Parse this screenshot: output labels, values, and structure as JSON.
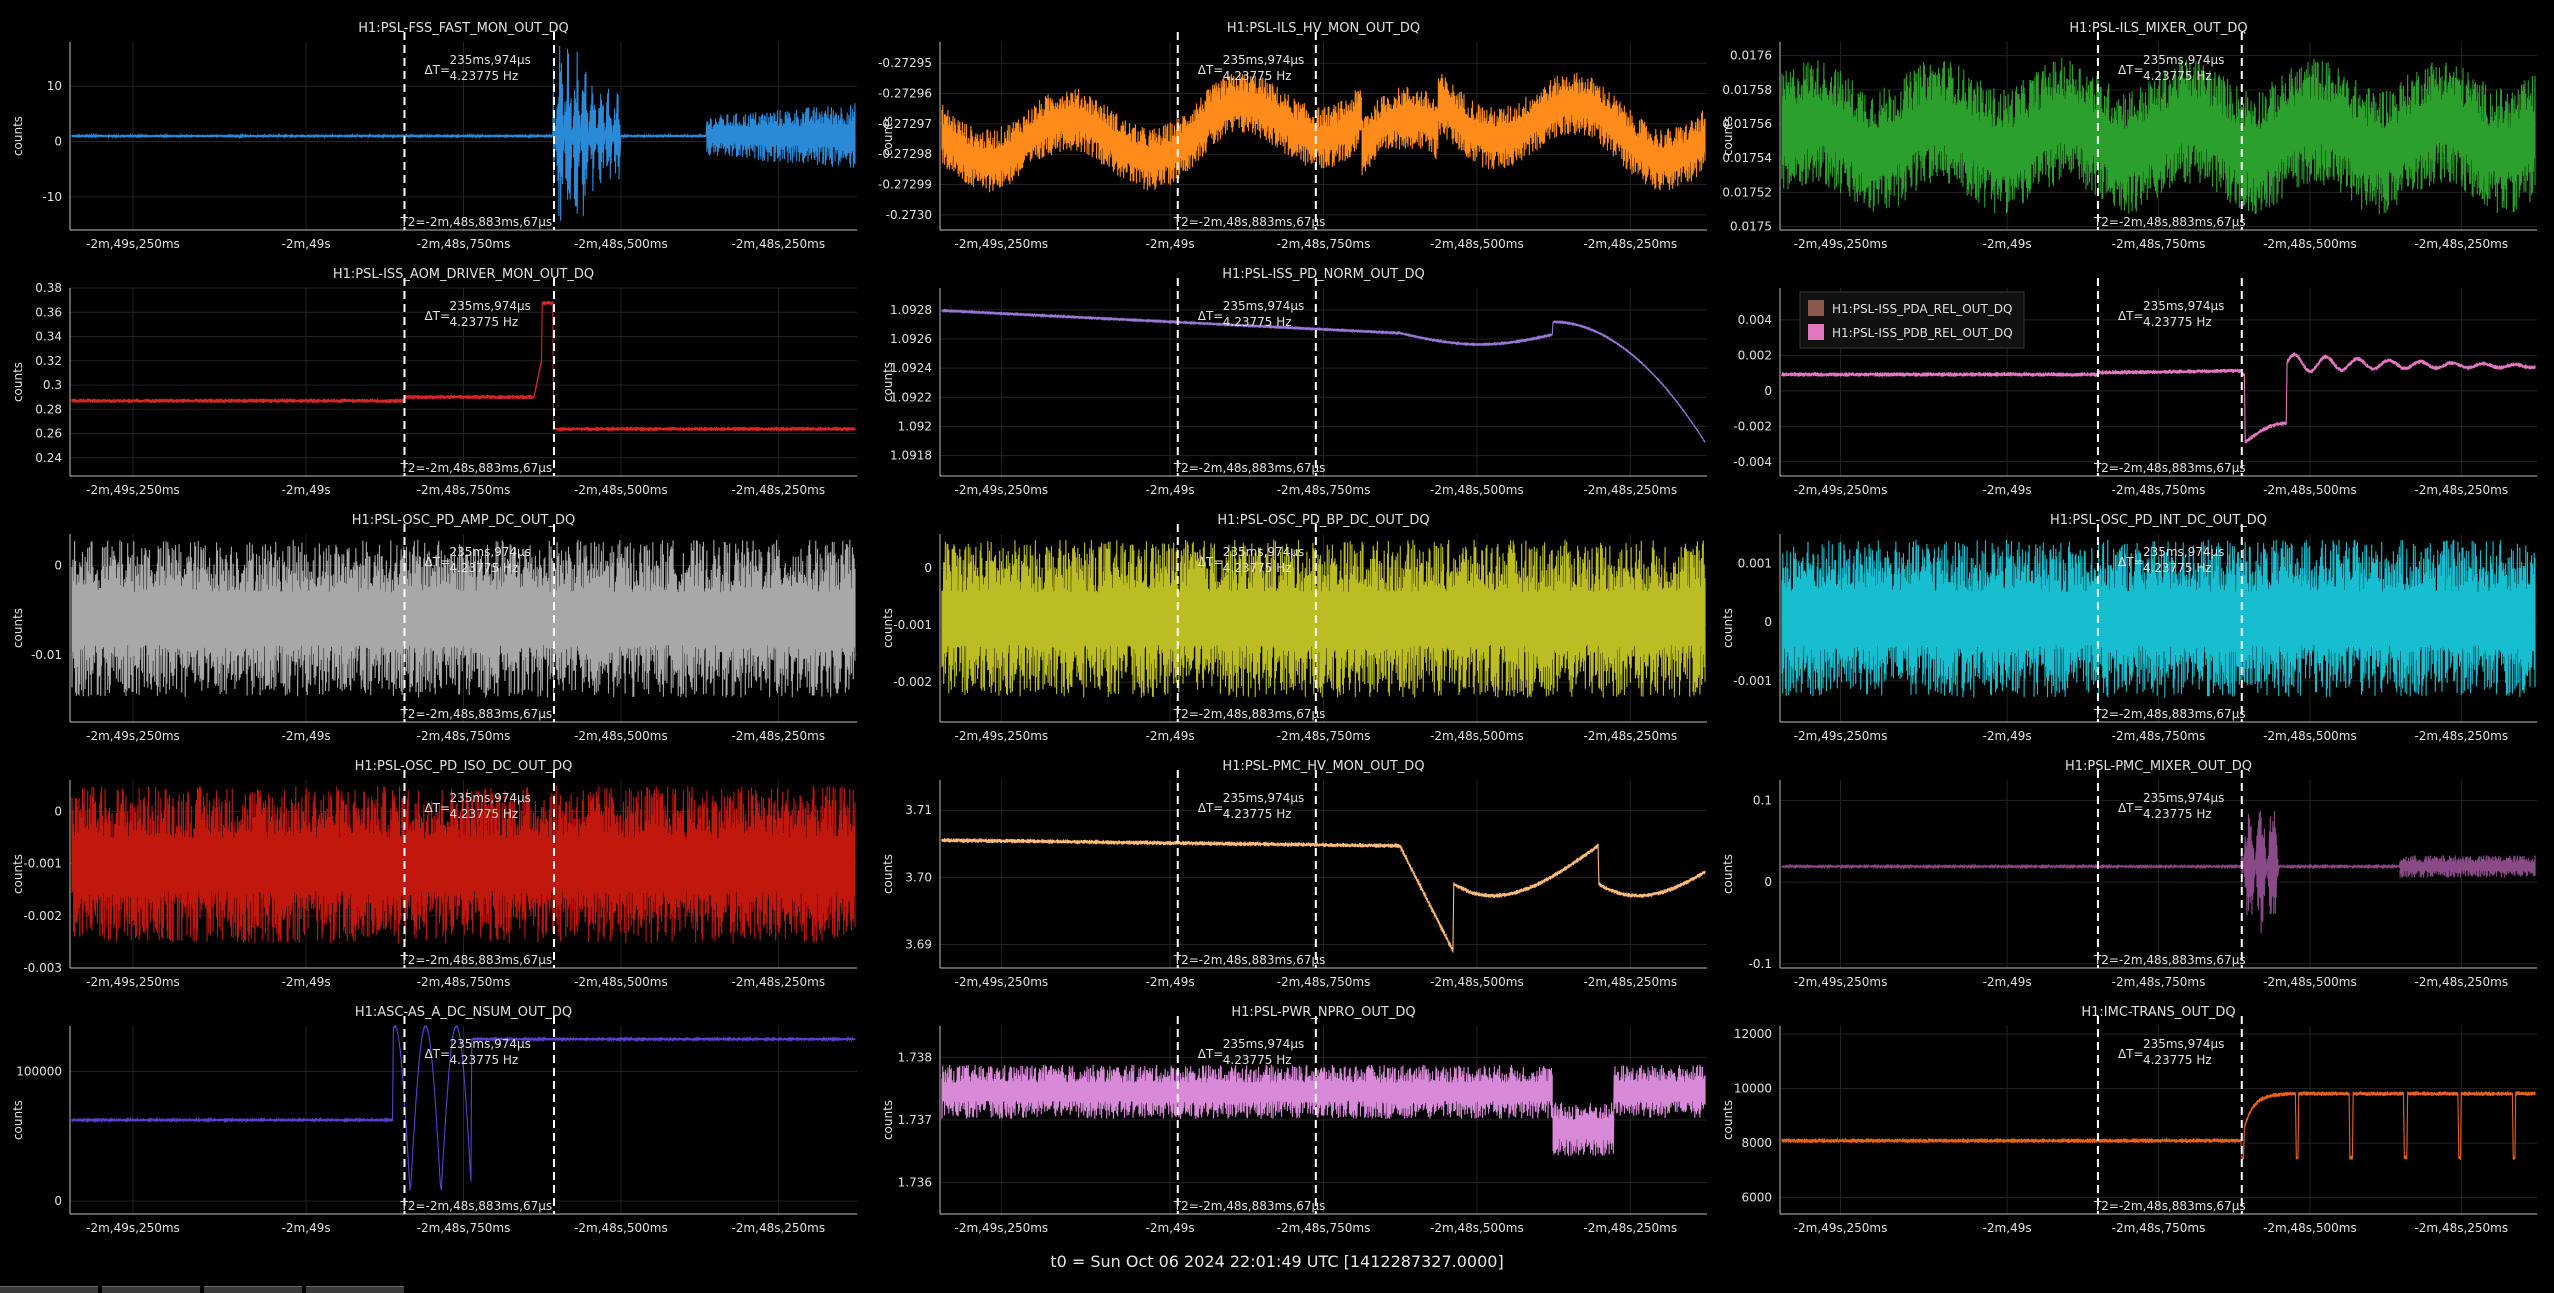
{
  "footer": "t0 = Sun Oct 06 2024 22:01:49 UTC [1412287327.0000]",
  "tabs": [
    "",
    "",
    "",
    ""
  ],
  "cursor": {
    "dt_label": "ΔT=",
    "dt_value": "235ms,974μs",
    "freq": "4.23775 Hz",
    "t2": "T2=-2m,48s,883ms,67μs"
  },
  "chart_data": [
    {
      "type": "line",
      "title": "H1:PSL-FSS_FAST_MON_OUT_DQ",
      "ylabel": "counts",
      "color": "#2b8ad8",
      "style": "fss",
      "x_ticks": [
        "-2m,49s,250ms",
        "-2m,49s",
        "-2m,48s,750ms",
        "-2m,48s,500ms",
        "-2m,48s,250ms"
      ],
      "y_ticks": [
        "10",
        "0",
        "-10"
      ],
      "ylim": [
        -16,
        18
      ],
      "grid": true
    },
    {
      "type": "line",
      "title": "H1:PSL-ILS_HV_MON_OUT_DQ",
      "ylabel": "counts",
      "color": "#ff8c1a",
      "style": "hvmon",
      "x_ticks": [
        "-2m,49s,250ms",
        "-2m,49s",
        "-2m,48s,750ms",
        "-2m,48s,500ms",
        "-2m,48s,250ms"
      ],
      "y_ticks": [
        "-0.27295",
        "-0.27296",
        "-0.27297",
        "-0.27298",
        "-0.27299",
        "-0.2730"
      ],
      "ylim": [
        -0.273005,
        -0.272943
      ],
      "grid": true
    },
    {
      "type": "line",
      "title": "H1:PSL-ILS_MIXER_OUT_DQ",
      "ylabel": "counts",
      "color": "#2ca02c",
      "style": "mixer",
      "x_ticks": [
        "-2m,49s,250ms",
        "-2m,49s",
        "-2m,48s,750ms",
        "-2m,48s,500ms",
        "-2m,48s,250ms"
      ],
      "y_ticks": [
        "0.0176",
        "0.01758",
        "0.01756",
        "0.01754",
        "0.01752",
        "0.0175"
      ],
      "ylim": [
        0.017498,
        0.017608
      ],
      "grid": true
    },
    {
      "type": "line",
      "title": "H1:PSL-ISS_AOM_DRIVER_MON_OUT_DQ",
      "ylabel": "counts",
      "color": "#d62728",
      "style": "aom",
      "x_ticks": [
        "-2m,49s,250ms",
        "-2m,49s",
        "-2m,48s,750ms",
        "-2m,48s,500ms",
        "-2m,48s,250ms"
      ],
      "y_ticks": [
        "0.38",
        "0.36",
        "0.34",
        "0.32",
        "0.3",
        "0.28",
        "0.26",
        "0.24"
      ],
      "ylim": [
        0.225,
        0.38
      ],
      "grid": true
    },
    {
      "type": "line",
      "title": "H1:PSL-ISS_PD_NORM_OUT_DQ",
      "ylabel": "counts",
      "color": "#9a7ad8",
      "style": "pdnorm",
      "x_ticks": [
        "-2m,49s,250ms",
        "-2m,49s",
        "-2m,48s,750ms",
        "-2m,48s,500ms",
        "-2m,48s,250ms"
      ],
      "y_ticks": [
        "1.0928",
        "1.0926",
        "1.0924",
        "1.0922",
        "1.092",
        "1.0918"
      ],
      "ylim": [
        1.09166,
        1.09295
      ],
      "grid": true
    },
    {
      "type": "line",
      "title": "",
      "ylabel": "",
      "color": "#e377c2",
      "style": "pdarel",
      "legend": [
        {
          "name": "H1:PSL-ISS_PDA_REL_OUT_DQ",
          "color": "#8c564b"
        },
        {
          "name": "H1:PSL-ISS_PDB_REL_OUT_DQ",
          "color": "#e377c2"
        }
      ],
      "x_ticks": [
        "-2m,49s,250ms",
        "-2m,49s",
        "-2m,48s,750ms",
        "-2m,48s,500ms",
        "-2m,48s,250ms"
      ],
      "y_ticks": [
        "0.004",
        "0.002",
        "0",
        "-0.002",
        "-0.004"
      ],
      "ylim": [
        -0.0048,
        0.0058
      ],
      "grid": true
    },
    {
      "type": "line",
      "title": "H1:PSL-OSC_PD_AMP_DC_OUT_DQ",
      "ylabel": "counts",
      "color": "#a8a8a8",
      "style": "noise",
      "x_ticks": [
        "-2m,49s,250ms",
        "-2m,49s",
        "-2m,48s,750ms",
        "-2m,48s,500ms",
        "-2m,48s,250ms"
      ],
      "y_ticks": [
        "0",
        "-0.01"
      ],
      "ylim": [
        -0.0175,
        0.0035
      ],
      "grid": true
    },
    {
      "type": "line",
      "title": "H1:PSL-OSC_PD_BP_DC_OUT_DQ",
      "ylabel": "counts",
      "color": "#bcbd22",
      "style": "noise",
      "x_ticks": [
        "-2m,49s,250ms",
        "-2m,49s",
        "-2m,48s,750ms",
        "-2m,48s,500ms",
        "-2m,48s,250ms"
      ],
      "y_ticks": [
        "0",
        "-0.001",
        "-0.002"
      ],
      "ylim": [
        -0.0027,
        0.0006
      ],
      "grid": true
    },
    {
      "type": "line",
      "title": "H1:PSL-OSC_PD_INT_DC_OUT_DQ",
      "ylabel": "counts",
      "color": "#17becf",
      "style": "noise",
      "x_ticks": [
        "-2m,49s,250ms",
        "-2m,49s",
        "-2m,48s,750ms",
        "-2m,48s,500ms",
        "-2m,48s,250ms"
      ],
      "y_ticks": [
        "0.001",
        "0",
        "-0.001"
      ],
      "ylim": [
        -0.0017,
        0.0015
      ],
      "grid": true
    },
    {
      "type": "line",
      "title": "H1:PSL-OSC_PD_ISO_DC_OUT_DQ",
      "ylabel": "counts",
      "color": "#c0180c",
      "style": "noise",
      "x_ticks": [
        "-2m,49s,250ms",
        "-2m,49s",
        "-2m,48s,750ms",
        "-2m,48s,500ms",
        "-2m,48s,250ms"
      ],
      "y_ticks": [
        "0",
        "-0.001",
        "-0.002",
        "-0.003"
      ],
      "ylim": [
        -0.003,
        0.0006
      ],
      "grid": true
    },
    {
      "type": "line",
      "title": "H1:PSL-PMC_HV_MON_OUT_DQ",
      "ylabel": "counts",
      "color": "#ffbb78",
      "style": "pmchv",
      "x_ticks": [
        "-2m,49s,250ms",
        "-2m,49s",
        "-2m,48s,750ms",
        "-2m,48s,500ms",
        "-2m,48s,250ms"
      ],
      "y_ticks": [
        "3.71",
        "3.70",
        "3.69"
      ],
      "ylim": [
        3.6865,
        3.7145
      ],
      "grid": true
    },
    {
      "type": "line",
      "title": "H1:PSL-PMC_MIXER_OUT_DQ",
      "ylabel": "counts",
      "color": "#8a4a88",
      "style": "pmcmix",
      "x_ticks": [
        "-2m,49s,250ms",
        "-2m,49s",
        "-2m,48s,750ms",
        "-2m,48s,500ms",
        "-2m,48s,250ms"
      ],
      "y_ticks": [
        "0.1",
        "0",
        "-0.1"
      ],
      "ylim": [
        -0.105,
        0.125
      ],
      "grid": true
    },
    {
      "type": "line",
      "title": "H1:ASC-AS_A_DC_NSUM_OUT_DQ",
      "ylabel": "counts",
      "color": "#5b3fd0",
      "style": "asc",
      "x_ticks": [
        "-2m,49s,250ms",
        "-2m,49s",
        "-2m,48s,750ms",
        "-2m,48s,500ms",
        "-2m,48s,250ms"
      ],
      "y_ticks": [
        "100000",
        "0"
      ],
      "ylim": [
        -10000,
        135000
      ],
      "grid": true
    },
    {
      "type": "line",
      "title": "H1:PSL-PWR_NPRO_OUT_DQ",
      "ylabel": "counts",
      "color": "#d88ad8",
      "style": "npro",
      "x_ticks": [
        "-2m,49s,250ms",
        "-2m,49s",
        "-2m,48s,750ms",
        "-2m,48s,500ms",
        "-2m,48s,250ms"
      ],
      "y_ticks": [
        "1.738",
        "1.737",
        "1.736"
      ],
      "ylim": [
        1.7355,
        1.7385
      ],
      "grid": true
    },
    {
      "type": "line",
      "title": "H1:IMC-TRANS_OUT_DQ",
      "ylabel": "counts",
      "color": "#e8621c",
      "style": "imc",
      "x_ticks": [
        "-2m,49s,250ms",
        "-2m,49s",
        "-2m,48s,750ms",
        "-2m,48s,500ms",
        "-2m,48s,250ms"
      ],
      "y_ticks": [
        "12000",
        "10000",
        "8000",
        "6000"
      ],
      "ylim": [
        5400,
        12300
      ],
      "grid": true
    }
  ]
}
